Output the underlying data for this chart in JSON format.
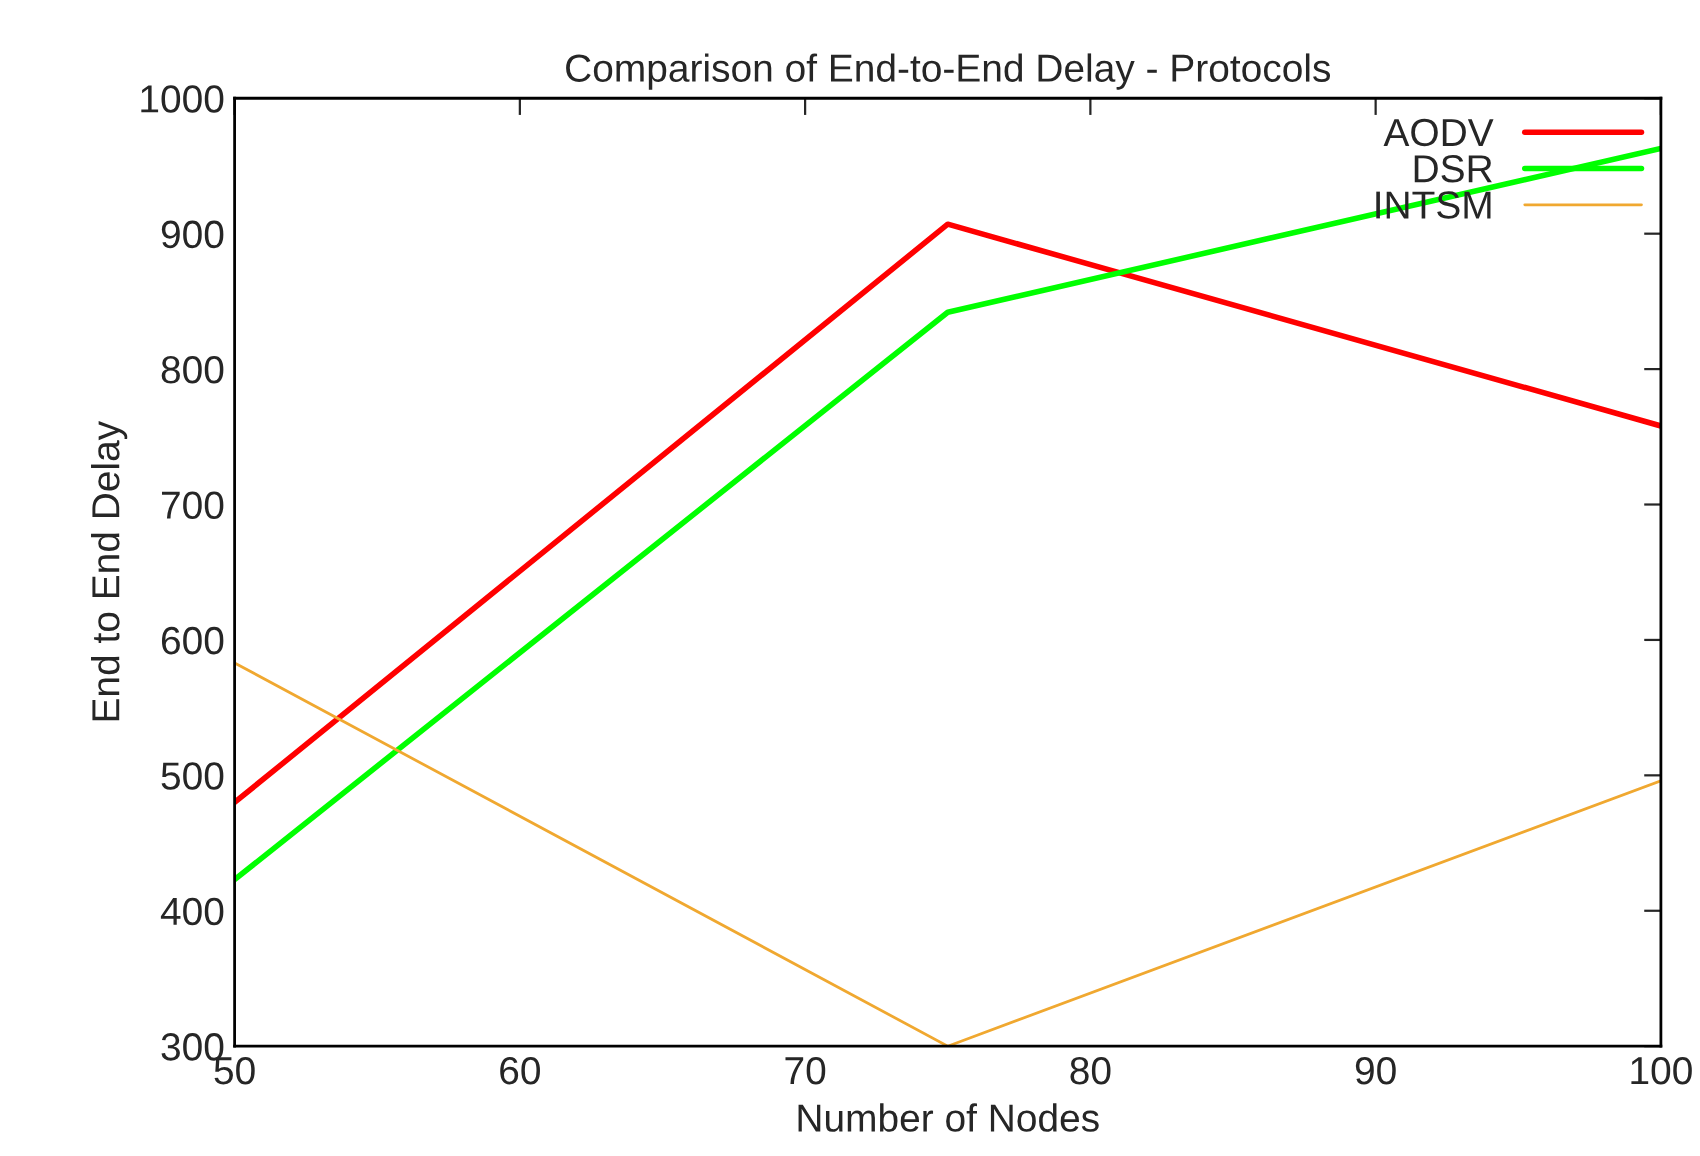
{
  "chart_data": {
    "type": "line",
    "title": "Comparison of End-to-End Delay - Protocols",
    "xlabel": "Number of Nodes",
    "ylabel": "End to End Delay",
    "x": [
      50,
      75,
      100
    ],
    "series": [
      {
        "name": "AODV",
        "color": "#ff0000",
        "values": [
          480,
          907,
          758
        ]
      },
      {
        "name": "DSR",
        "color": "#00ff00",
        "values": [
          423,
          842,
          963
        ]
      },
      {
        "name": "INTSM",
        "color": "#f0a830",
        "values": [
          583,
          300,
          496
        ]
      }
    ],
    "xlim": [
      50,
      100
    ],
    "xticks": [
      50,
      60,
      70,
      80,
      90,
      100
    ],
    "ylim": [
      300,
      1000
    ],
    "yticks": [
      300,
      400,
      500,
      600,
      700,
      800,
      900,
      1000
    ],
    "legend": "top right",
    "grid": false,
    "marker": "none",
    "line_style": "solid"
  }
}
